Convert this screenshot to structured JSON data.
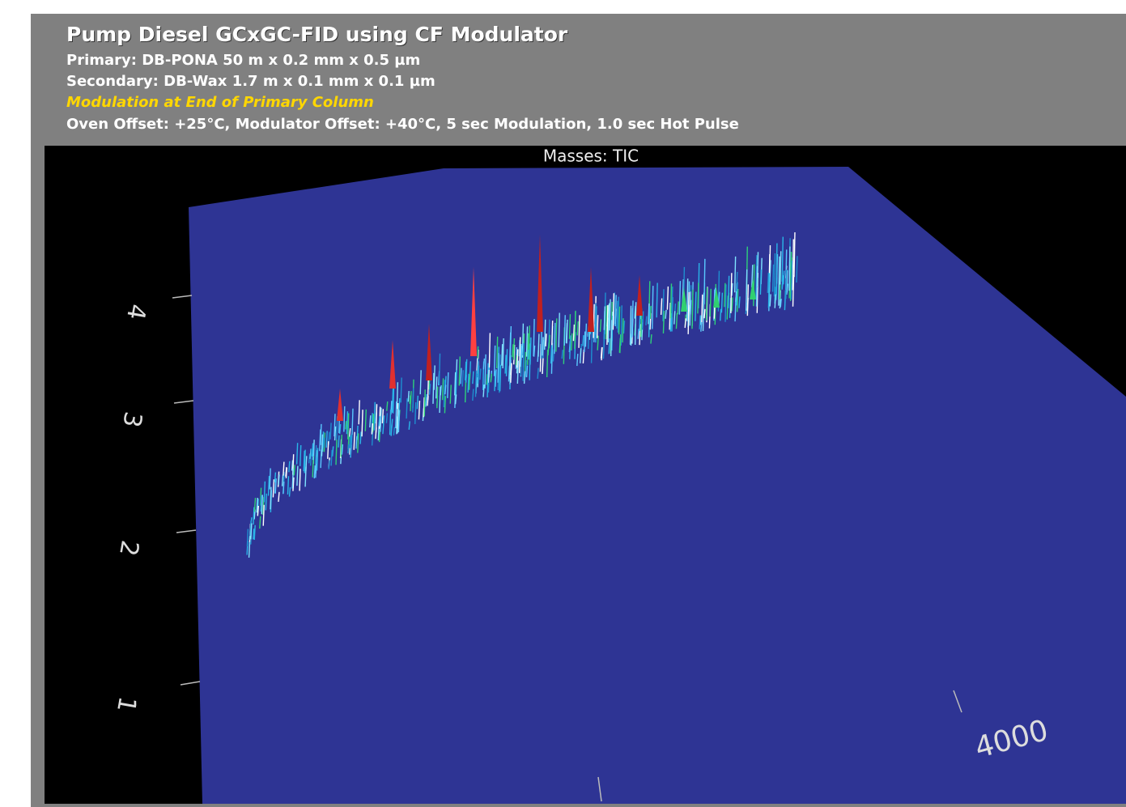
{
  "header": {
    "title": "Pump Diesel GCxGC-FID using CF Modulator",
    "lines": [
      "Primary: DB-PONA 50 m x 0.2 mm x 0.5 µm",
      "Secondary: DB-Wax 1.7 m x 0.1 mm x 0.1 µm"
    ],
    "highlight": "Modulation at End of Primary Column",
    "conditions": "Oven Offset: +25°C,  Modulator Offset: +40°C, 5 sec Modulation, 1.0 sec Hot Pulse"
  },
  "plot": {
    "title": "Masses:  TIC",
    "y_tick_labels": [
      "4",
      "3",
      "2",
      "1"
    ],
    "x_tick_labels": [
      "4000"
    ]
  }
}
